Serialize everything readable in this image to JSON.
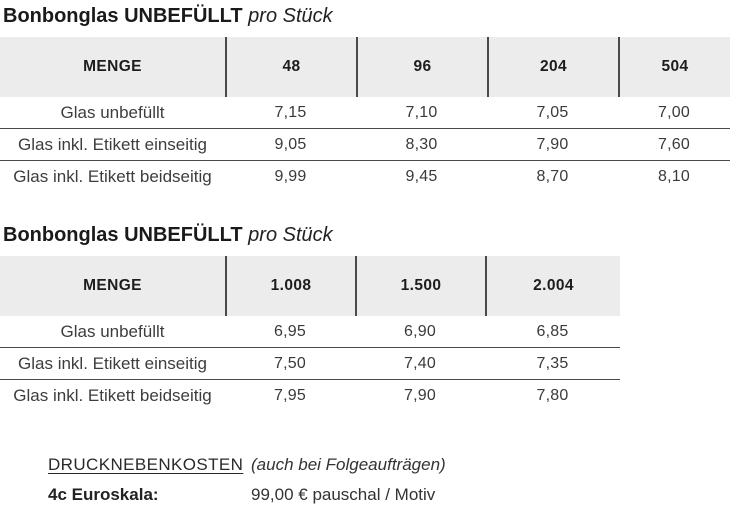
{
  "colors": {
    "page_background": "#ffffff",
    "header_background": "#ececec",
    "divider_line": "#4a4a4a",
    "title_text": "#1a1a1a",
    "body_text": "#3d3d3d"
  },
  "tables": [
    {
      "title_bold": "Bonbonglas UNBEFÜLLT",
      "title_italic": "pro Stück",
      "header": [
        "MENGE",
        "48",
        "96",
        "204",
        "504"
      ],
      "rows": [
        {
          "label": "Glas unbefüllt",
          "values": [
            "7,15",
            "7,10",
            "7,05",
            "7,00"
          ]
        },
        {
          "label": "Glas inkl. Etikett einseitig",
          "values": [
            "9,05",
            "8,30",
            "7,90",
            "7,60"
          ]
        },
        {
          "label": "Glas inkl. Etikett beidseitig",
          "values": [
            "9,99",
            "9,45",
            "8,70",
            "8,10"
          ]
        }
      ]
    },
    {
      "title_bold": "Bonbonglas UNBEFÜLLT",
      "title_italic": "pro Stück",
      "header": [
        "MENGE",
        "1.008",
        "1.500",
        "2.004"
      ],
      "rows": [
        {
          "label": "Glas unbefüllt",
          "values": [
            "6,95",
            "6,90",
            "6,85"
          ]
        },
        {
          "label": "Glas inkl. Etikett einseitig",
          "values": [
            "7,50",
            "7,40",
            "7,35"
          ]
        },
        {
          "label": "Glas inkl. Etikett beidseitig",
          "values": [
            "7,95",
            "7,90",
            "7,80"
          ]
        }
      ]
    }
  ],
  "footer": {
    "costs_label": "DRUCKNEBENKOSTEN",
    "costs_note": "(auch bei Folgeaufträgen)",
    "euroskala_label": "4c Euroskala:",
    "euroskala_value": "99,00 € pauschal / Motiv"
  }
}
